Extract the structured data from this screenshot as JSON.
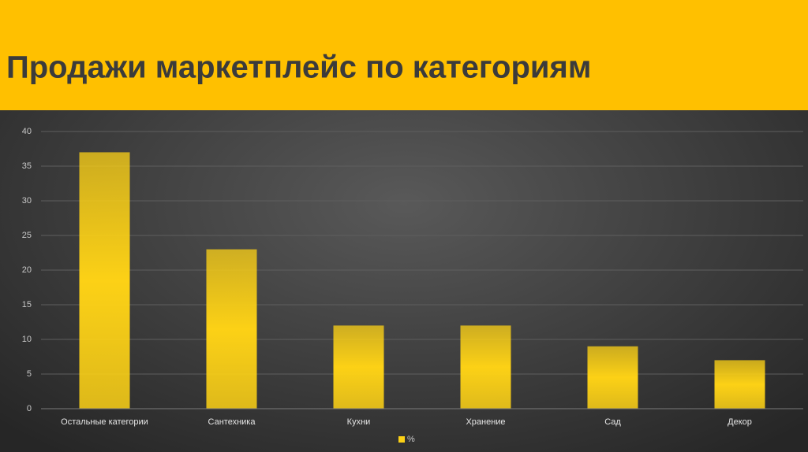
{
  "chart_data": {
    "type": "bar",
    "title": "Продажи маркетплейс  по категориям",
    "categories": [
      "Остальные категории",
      "Сантехника",
      "Кухни",
      "Хранение",
      "Сад",
      "Декор"
    ],
    "series": [
      {
        "name": "%",
        "color": "#fcd116",
        "values": [
          37,
          23,
          12,
          12,
          9,
          7
        ]
      }
    ],
    "ylim": [
      0,
      40
    ],
    "yticks": [
      0,
      5,
      10,
      15,
      20,
      25,
      30,
      35,
      40
    ],
    "grid": true,
    "legend": "bottom"
  }
}
